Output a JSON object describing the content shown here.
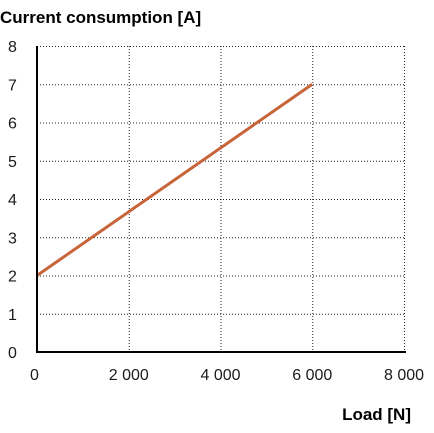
{
  "chart_data": {
    "type": "line",
    "title": "",
    "ylabel": "Current consumption [A]",
    "xlabel": "Load [N]",
    "xlim": [
      0,
      8000
    ],
    "ylim": [
      0,
      8
    ],
    "x_ticks": [
      0,
      2000,
      4000,
      6000,
      8000
    ],
    "x_tick_labels": [
      "0",
      "2 000",
      "4 000",
      "6 000",
      "8 000"
    ],
    "y_ticks": [
      0,
      1,
      2,
      3,
      4,
      5,
      6,
      7,
      8
    ],
    "y_tick_labels": [
      "0",
      "1",
      "2",
      "3",
      "4",
      "5",
      "6",
      "7",
      "8"
    ],
    "grid": true,
    "series": [
      {
        "color": "#C8643A",
        "x": [
          0,
          6000
        ],
        "y": [
          2,
          7
        ]
      }
    ]
  }
}
